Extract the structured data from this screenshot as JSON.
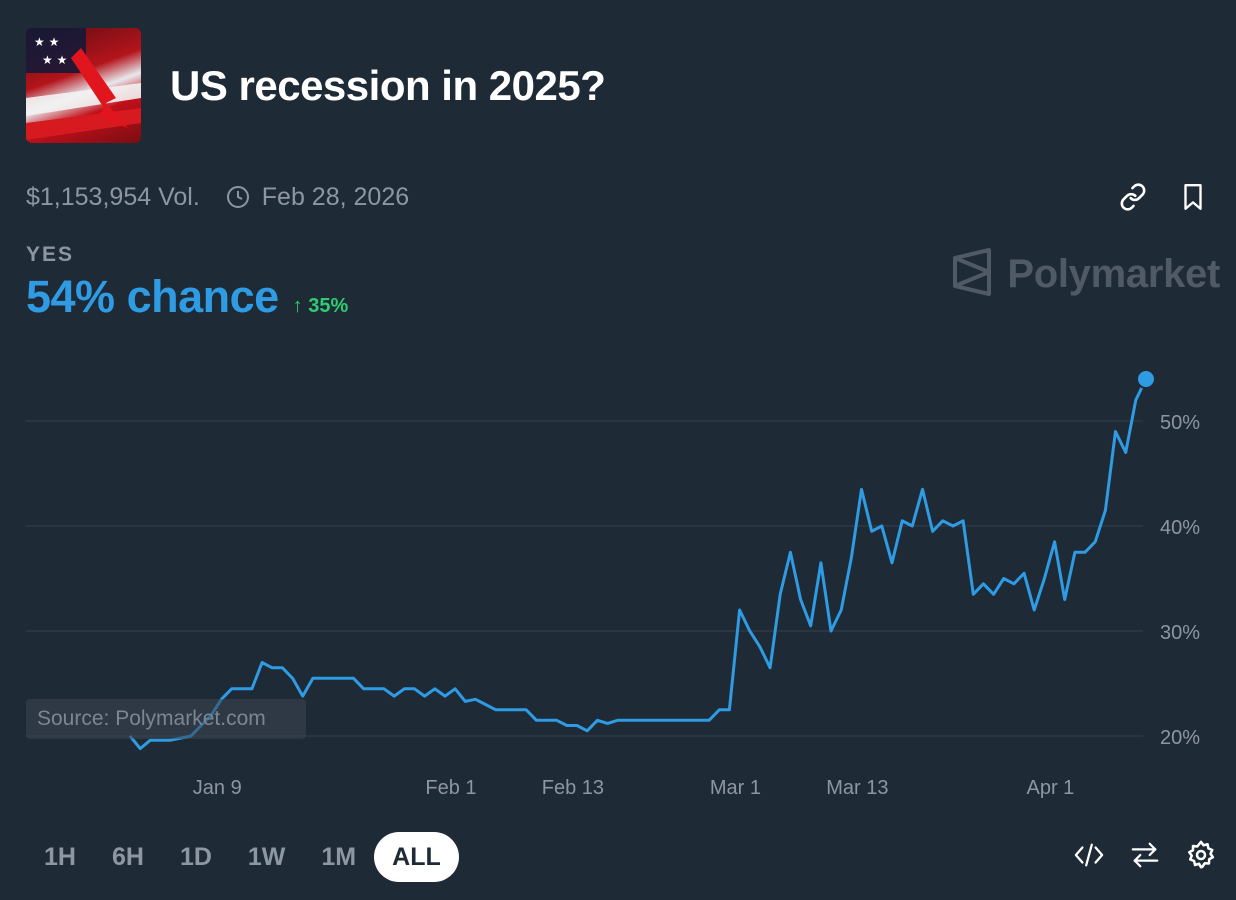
{
  "market": {
    "title": "US recession in 2025?",
    "volume": "$1,153,954 Vol.",
    "end_date": "Feb 28, 2026",
    "outcome_label": "YES",
    "chance_text": "54% chance",
    "delta_text": "35%"
  },
  "brand": {
    "name": "Polymarket"
  },
  "source_text": "Source: Polymarket.com",
  "time_ranges": [
    "1H",
    "6H",
    "1D",
    "1W",
    "1M",
    "ALL"
  ],
  "active_range": "ALL",
  "icons": {
    "link": "link-icon",
    "bookmark": "bookmark-icon",
    "clock": "clock-icon",
    "embed": "embed-code-icon",
    "swap": "swap-arrows-icon",
    "settings": "gear-icon"
  },
  "colors": {
    "accent": "#2e9be3",
    "positive": "#2ecc71",
    "background": "#1f2a37",
    "muted": "#8d97a3"
  },
  "chart_data": {
    "type": "line",
    "series": [
      {
        "values_x_days_from_jan1": [],
        "points": [
          [
            "Jan 1",
            20.0
          ],
          [
            "Jan 2",
            18.8
          ],
          [
            "Jan 3",
            19.6
          ],
          [
            "Jan 5",
            19.6
          ],
          [
            "Jan 7",
            20.0
          ],
          [
            "Jan 9",
            22.0
          ],
          [
            "Jan 10",
            23.5
          ],
          [
            "Jan 11",
            24.5
          ],
          [
            "Jan 13",
            24.5
          ],
          [
            "Jan 14",
            27.0
          ],
          [
            "Jan 15",
            26.5
          ],
          [
            "Jan 16",
            26.5
          ],
          [
            "Jan 17",
            25.5
          ],
          [
            "Jan 18",
            23.8
          ],
          [
            "Jan 19",
            25.5
          ],
          [
            "Jan 20",
            25.5
          ],
          [
            "Jan 23",
            25.5
          ],
          [
            "Jan 24",
            24.5
          ],
          [
            "Jan 26",
            24.5
          ],
          [
            "Jan 27",
            23.8
          ],
          [
            "Jan 28",
            24.5
          ],
          [
            "Jan 29",
            24.5
          ],
          [
            "Jan 30",
            23.8
          ],
          [
            "Jan 31",
            24.5
          ],
          [
            "Feb 1",
            23.8
          ],
          [
            "Feb 2",
            24.5
          ],
          [
            "Feb 3",
            23.3
          ],
          [
            "Feb 4",
            23.5
          ],
          [
            "Feb 5",
            23.0
          ],
          [
            "Feb 6",
            22.5
          ],
          [
            "Feb 9",
            22.5
          ],
          [
            "Feb 10",
            21.5
          ],
          [
            "Feb 12",
            21.5
          ],
          [
            "Feb 13",
            21.0
          ],
          [
            "Feb 14",
            21.0
          ],
          [
            "Feb 15",
            20.5
          ],
          [
            "Feb 16",
            21.5
          ],
          [
            "Feb 17",
            21.2
          ],
          [
            "Feb 18",
            21.5
          ],
          [
            "Feb 19",
            21.5
          ],
          [
            "Feb 21",
            21.5
          ],
          [
            "Feb 27",
            21.5
          ],
          [
            "Feb 28",
            22.5
          ],
          [
            "Mar 1",
            22.5
          ],
          [
            "Mar 2",
            32.0
          ],
          [
            "Mar 3",
            30.0
          ],
          [
            "Mar 4",
            28.5
          ],
          [
            "Mar 5",
            26.5
          ],
          [
            "Mar 6",
            33.5
          ],
          [
            "Mar 7",
            37.5
          ],
          [
            "Mar 8",
            33.0
          ],
          [
            "Mar 9",
            30.5
          ],
          [
            "Mar 10",
            36.5
          ],
          [
            "Mar 11",
            30.0
          ],
          [
            "Mar 12",
            32.0
          ],
          [
            "Mar 13",
            37.0
          ],
          [
            "Mar 14",
            43.5
          ],
          [
            "Mar 15",
            39.5
          ],
          [
            "Mar 16",
            40.0
          ],
          [
            "Mar 17",
            36.5
          ],
          [
            "Mar 18",
            40.5
          ],
          [
            "Mar 19",
            40.0
          ],
          [
            "Mar 20",
            43.5
          ],
          [
            "Mar 21",
            39.5
          ],
          [
            "Mar 22",
            40.5
          ],
          [
            "Mar 23",
            40.0
          ],
          [
            "Mar 24",
            40.5
          ],
          [
            "Mar 25",
            33.5
          ],
          [
            "Mar 26",
            34.5
          ],
          [
            "Mar 27",
            33.5
          ],
          [
            "Mar 28",
            35.0
          ],
          [
            "Mar 29",
            34.5
          ],
          [
            "Mar 30",
            35.5
          ],
          [
            "Mar 31",
            32.0
          ],
          [
            "Apr 1",
            35.0
          ],
          [
            "Apr 2",
            38.5
          ],
          [
            "Apr 3",
            33.0
          ],
          [
            "Apr 4",
            37.5
          ],
          [
            "Apr 5",
            37.5
          ],
          [
            "Apr 6",
            38.5
          ],
          [
            "Apr 7",
            41.5
          ],
          [
            "Apr 8",
            49.0
          ],
          [
            "Apr 9",
            47.0
          ],
          [
            "Apr 10",
            52.0
          ],
          [
            "Apr 11",
            54.0
          ]
        ]
      }
    ],
    "x_ticks": [
      "Jan 9",
      "Feb 1",
      "Feb 13",
      "Mar 1",
      "Mar 13",
      "Apr 1"
    ],
    "y_ticks": [
      "20%",
      "30%",
      "40%",
      "50%"
    ],
    "y_tick_values": [
      20,
      30,
      40,
      50
    ],
    "ylim": [
      18,
      56
    ],
    "grid": true,
    "title": "",
    "xlabel": "",
    "ylabel": ""
  }
}
